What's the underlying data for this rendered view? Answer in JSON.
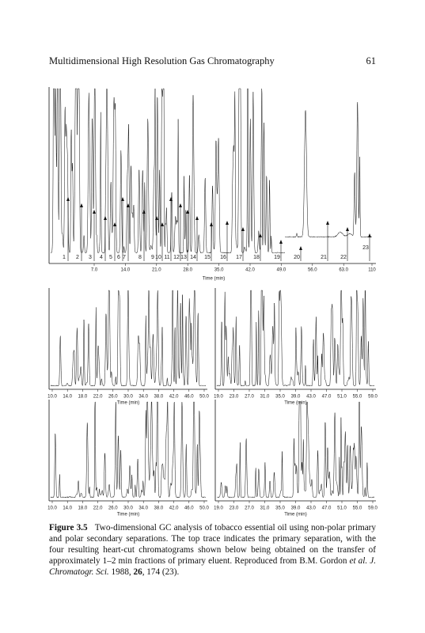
{
  "header": {
    "title": "Multidimensional High Resolution Gas Chromatography",
    "page": "61"
  },
  "figure": {
    "top": {
      "fractions": [
        "1",
        "2",
        "3",
        "4",
        "5",
        "6",
        "7",
        "8",
        "9",
        "10",
        "11",
        "12",
        "13",
        "14",
        "15",
        "16",
        "17",
        "18",
        "19",
        "20",
        "21",
        "22",
        "23"
      ],
      "xticks": [
        "7.0",
        "14.0",
        "21.0",
        "28.0",
        "35.0",
        "42.0",
        "49.0",
        "56.0",
        "63.0",
        "110"
      ],
      "xlabel": "Time (min)"
    },
    "panels": [
      {
        "xticks": [
          "10.0",
          "14.0",
          "18.0",
          "22.0",
          "26.0",
          "30.0",
          "34.0",
          "38.0",
          "42.0",
          "46.0",
          "50.0"
        ],
        "xlabel": "Time (min)"
      },
      {
        "xticks": [
          "19.0",
          "23.0",
          "27.0",
          "31.0",
          "35.0",
          "39.0",
          "43.0",
          "47.0",
          "51.0",
          "55.0",
          "59.0"
        ],
        "xlabel": "Time (min)"
      },
      {
        "xticks": [
          "10.0",
          "14.0",
          "18.0",
          "22.0",
          "26.0",
          "30.0",
          "34.0",
          "38.0",
          "42.0",
          "46.0",
          "50.0"
        ],
        "xlabel": "Time (min)"
      },
      {
        "xticks": [
          "19.0",
          "23.0",
          "27.0",
          "31.0",
          "35.0",
          "39.0",
          "43.0",
          "47.0",
          "51.0",
          "55.0",
          "59.0"
        ],
        "xlabel": "Time (min)"
      }
    ]
  },
  "caption": {
    "label": "Figure 3.5",
    "text": "Two-dimensional GC analysis of tobacco essential oil using non-polar primary and polar secondary separations. The top trace indicates the primary separation, with the four resulting heart-cut chromatograms shown below being obtained on the transfer of approximately 1–2 min fractions of primary eluent. Reproduced from B.M. Gordon",
    "etal": "et al.",
    "journal": "J. Chromatogr. Sci.",
    "year": "1988,",
    "volume": "26",
    "pages": ", 174 (23)."
  }
}
